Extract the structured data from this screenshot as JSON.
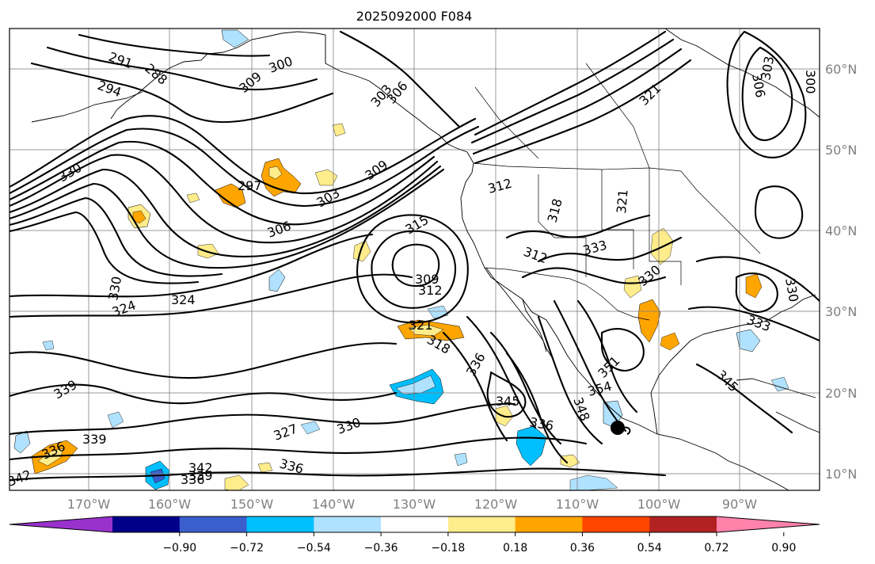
{
  "title": "2025092000 F084",
  "lon_labels": [
    "170°W",
    "160°W",
    "150°W",
    "140°W",
    "130°W",
    "120°W",
    "110°W",
    "100°W",
    "90°W"
  ],
  "lat_labels": [
    "60°N",
    "50°N",
    "40°N",
    "30°N",
    "20°N",
    "10°N"
  ],
  "colorbar": {
    "colors": [
      "#9932CC",
      "#00008B",
      "#3A5FCD",
      "#00BFFF",
      "#B0E2FF",
      "#FFFFFF",
      "#FFEC8B",
      "#FFA500",
      "#FF4500",
      "#B22222",
      "#FF82AB"
    ],
    "tick_labels": [
      "−0.90",
      "−0.72",
      "−0.54",
      "−0.36",
      "−0.18",
      "0.18",
      "0.36",
      "0.54",
      "0.72",
      "0.90"
    ]
  },
  "contour_labels": [
    "294",
    "291",
    "288",
    "300",
    "303",
    "306",
    "309",
    "330",
    "297",
    "303",
    "309",
    "306",
    "315",
    "312",
    "318",
    "321",
    "312",
    "321",
    "333",
    "324",
    "330",
    "324",
    "309",
    "312",
    "321",
    "318",
    "336",
    "339",
    "339",
    "327",
    "330",
    "336",
    "336",
    "342",
    "339",
    "336",
    "342",
    "345",
    "336",
    "348",
    "354",
    "351",
    "345",
    "333",
    "330",
    "306",
    "303",
    "300",
    "330"
  ],
  "storm_marker": "storm-center"
}
